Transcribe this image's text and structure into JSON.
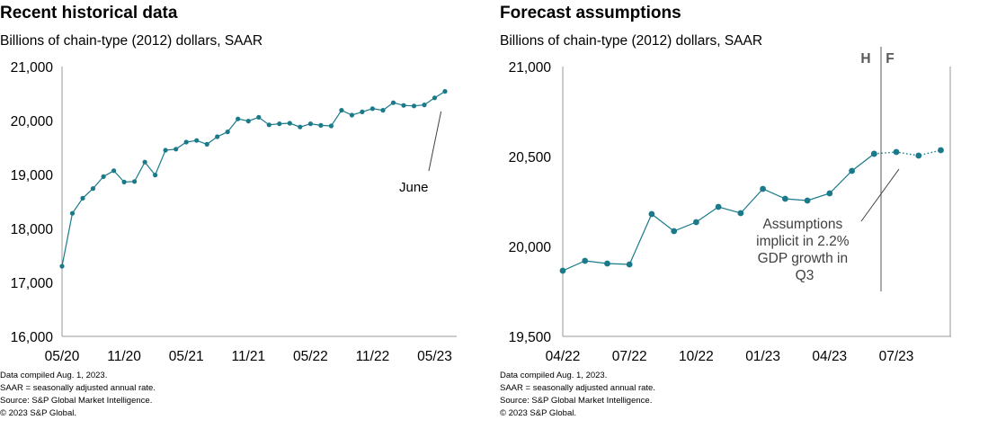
{
  "colors": {
    "series": "#1a7a8a",
    "axis": "#999999",
    "text": "#000000",
    "annotation": "#404040"
  },
  "chart_data": [
    {
      "type": "line",
      "title": "Recent historical data",
      "subtitle": "Billions of chain-type (2012) dollars, SAAR",
      "ylim": [
        16000,
        21000
      ],
      "yticks": [
        16000,
        17000,
        18000,
        19000,
        20000,
        21000
      ],
      "ytick_labels": [
        "16,000",
        "17,000",
        "18,000",
        "19,000",
        "20,000",
        "21,000"
      ],
      "xticks": [
        0,
        6,
        12,
        18,
        24,
        30,
        36
      ],
      "xtick_labels": [
        "05/20",
        "11/20",
        "05/21",
        "11/21",
        "05/22",
        "11/22",
        "05/23"
      ],
      "xlim": [
        0,
        37.5
      ],
      "series": [
        {
          "name": "Historical",
          "x": [
            0,
            1,
            2,
            3,
            4,
            5,
            6,
            7,
            8,
            9,
            10,
            11,
            12,
            13,
            14,
            15,
            16,
            17,
            18,
            19,
            20,
            21,
            22,
            23,
            24,
            25,
            26,
            27,
            28,
            29,
            30,
            31,
            32,
            33,
            34,
            35,
            36,
            37
          ],
          "values": [
            17300,
            18280,
            18560,
            18740,
            18960,
            19070,
            18860,
            18870,
            19230,
            18990,
            19450,
            19470,
            19600,
            19630,
            19560,
            19700,
            19790,
            20030,
            19990,
            20060,
            19920,
            19940,
            19950,
            19880,
            19940,
            19910,
            19900,
            20190,
            20100,
            20160,
            20220,
            20190,
            20330,
            20280,
            20270,
            20290,
            20420,
            20540
          ]
        }
      ],
      "annotations": [
        {
          "text": "June",
          "target_x": 37
        }
      ],
      "footnotes": [
        "Data compiled Aug. 1, 2023.",
        "SAAR = seasonally adjusted annual rate.",
        "Source: S&P Global Market Intelligence.",
        "© 2023 S&P Global."
      ]
    },
    {
      "type": "line",
      "title": "Forecast assumptions",
      "subtitle": "Billions of chain-type (2012) dollars, SAAR",
      "ylim": [
        19500,
        21000
      ],
      "yticks": [
        19500,
        20000,
        20500,
        21000
      ],
      "ytick_labels": [
        "19,500",
        "20,000",
        "20,500",
        "21,000"
      ],
      "xticks": [
        0,
        3,
        6,
        9,
        12,
        15
      ],
      "xtick_labels": [
        "04/22",
        "07/22",
        "10/22",
        "01/23",
        "04/23",
        "07/23"
      ],
      "xlim": [
        0,
        18.5
      ],
      "series": [
        {
          "name": "Historical",
          "x": [
            0,
            1,
            2,
            3,
            4,
            5,
            6,
            7,
            8,
            9,
            10,
            11,
            12,
            13,
            14
          ],
          "values": [
            19865,
            19920,
            19905,
            19900,
            20180,
            20085,
            20135,
            20220,
            20185,
            20320,
            20265,
            20255,
            20295,
            20420,
            20515
          ]
        },
        {
          "name": "Forecast",
          "x": [
            14,
            15,
            16,
            17
          ],
          "values": [
            20515,
            20525,
            20505,
            20535
          ]
        }
      ],
      "history_forecast_divider": {
        "x": 14.5,
        "left_label": "H",
        "right_label": "F"
      },
      "annotations": [
        {
          "text": [
            "Assumptions",
            "implicit  in 2.2%",
            "GDP growth  in",
            "Q3"
          ],
          "target_x": 15
        }
      ],
      "footnotes": [
        "Data compiled Aug. 1, 2023.",
        "SAAR = seasonally adjusted annual rate.",
        "Source: S&P Global Market Intelligence.",
        "© 2023 S&P Global."
      ]
    }
  ]
}
